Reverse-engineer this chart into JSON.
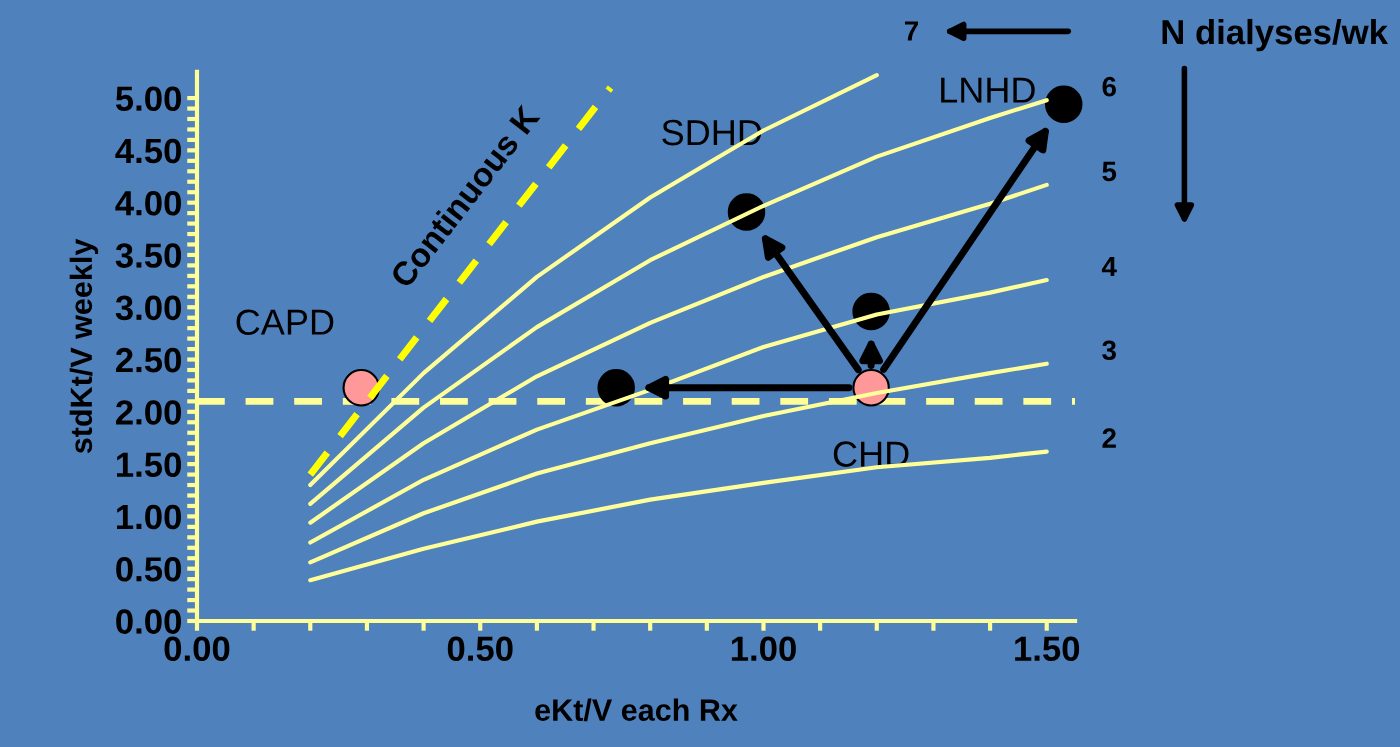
{
  "chart_data": {
    "type": "line",
    "xlabel": "eKt/V each Rx",
    "ylabel": "stdKt/V weekly",
    "xlim": [
      0,
      1.55
    ],
    "xticks": [
      {
        "value": 0,
        "label": "0.00"
      },
      {
        "value": 0.5,
        "label": "0.50"
      },
      {
        "value": 1.0,
        "label": "1.00"
      },
      {
        "value": 1.5,
        "label": "1.50"
      }
    ],
    "ylim": [
      0,
      5.25
    ],
    "yticks": [
      {
        "value": 0,
        "label": "0.00"
      },
      {
        "value": 0.5,
        "label": "0.50"
      },
      {
        "value": 1.0,
        "label": "1.00"
      },
      {
        "value": 1.5,
        "label": "1.50"
      },
      {
        "value": 2.0,
        "label": "2.00"
      },
      {
        "value": 2.5,
        "label": "2.50"
      },
      {
        "value": 3.0,
        "label": "3.00"
      },
      {
        "value": 3.5,
        "label": "3.50"
      },
      {
        "value": 4.0,
        "label": "4.00"
      },
      {
        "value": 4.5,
        "label": "4.50"
      },
      {
        "value": 5.0,
        "label": "5.00"
      }
    ],
    "series": [
      {
        "name": "2",
        "x": [
          0.2,
          0.4,
          0.6,
          0.8,
          1.0,
          1.2,
          1.4,
          1.5
        ],
        "values": [
          0.39,
          0.69,
          0.95,
          1.16,
          1.32,
          1.47,
          1.56,
          1.62
        ],
        "color": "#ffff99"
      },
      {
        "name": "3",
        "x": [
          0.2,
          0.4,
          0.6,
          0.8,
          1.0,
          1.2,
          1.4,
          1.5
        ],
        "values": [
          0.56,
          1.03,
          1.41,
          1.7,
          1.96,
          2.18,
          2.37,
          2.46
        ],
        "color": "#ffff99"
      },
      {
        "name": "4",
        "x": [
          0.2,
          0.4,
          0.6,
          0.8,
          1.0,
          1.2,
          1.4,
          1.5
        ],
        "values": [
          0.75,
          1.35,
          1.83,
          2.21,
          2.62,
          2.93,
          3.14,
          3.26
        ],
        "color": "#ffff99"
      },
      {
        "name": "5",
        "x": [
          0.2,
          0.4,
          0.6,
          0.8,
          1.0,
          1.2,
          1.4,
          1.5
        ],
        "values": [
          0.94,
          1.7,
          2.34,
          2.85,
          3.29,
          3.67,
          3.99,
          4.17
        ],
        "color": "#ffff99"
      },
      {
        "name": "6",
        "x": [
          0.2,
          0.4,
          0.6,
          0.8,
          1.0,
          1.2,
          1.4,
          1.5
        ],
        "values": [
          1.12,
          2.04,
          2.81,
          3.45,
          3.97,
          4.44,
          4.81,
          4.98
        ],
        "color": "#ffff99"
      },
      {
        "name": "7",
        "x": [
          0.2,
          0.4,
          0.6,
          0.8,
          1.0,
          1.2
        ],
        "values": [
          1.3,
          2.37,
          3.29,
          4.05,
          4.69,
          5.22
        ],
        "color": "#ffff99"
      },
      {
        "x": [
          0.2,
          0.73
        ],
        "values": [
          1.4,
          5.1
        ],
        "color": "#ffff00",
        "line_style": "dashed"
      },
      {
        "type": "scatter",
        "x": [
          0.29,
          1.19,
          0.74,
          0.97,
          1.19,
          1.53
        ],
        "values": [
          2.23,
          2.23,
          2.23,
          3.91,
          2.96,
          4.94
        ],
        "colors": [
          "#ff9999",
          "#ff9999",
          "#000000",
          "#000000",
          "#000000",
          "#000000"
        ]
      }
    ],
    "ref_lines": [
      {
        "axis": "y",
        "value": 2.1,
        "color": "#ffff99",
        "line_style": "dashed"
      }
    ],
    "annotations": [
      {
        "text": "CAPD",
        "x": 0.29,
        "y": 2.23
      },
      {
        "text": "CHD",
        "x": 1.19,
        "y": 2.23
      },
      {
        "text": "SDHD",
        "x": 0.97,
        "y": 3.91
      },
      {
        "text": "LNHD",
        "x": 1.53,
        "y": 4.94
      },
      {
        "text": "Continuous K",
        "x": 0.55,
        "y": 3.84
      },
      "N dialyses/wk"
    ],
    "legend": false,
    "grid": false
  }
}
